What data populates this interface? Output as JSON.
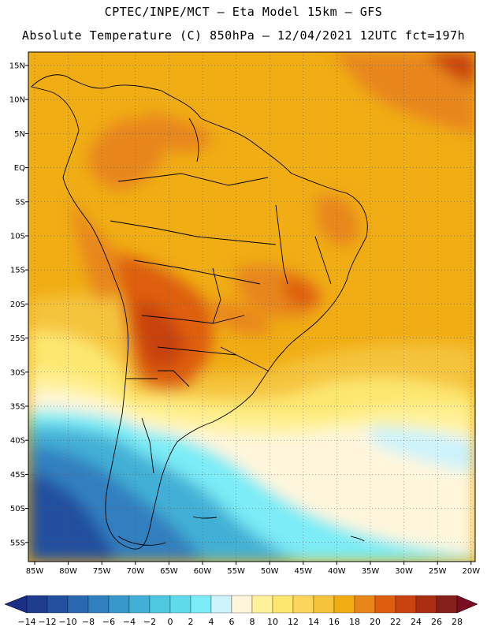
{
  "header": {
    "line1": "CPTEC/INPE/MCT —  Eta Model 15km — GFS",
    "line2": "Absolute Temperature (C) 850hPa — 12/04/2021 12UTC fct=197h"
  },
  "map": {
    "lat_labels": [
      "15N",
      "10N",
      "5N",
      "EQ",
      "5S",
      "10S",
      "15S",
      "20S",
      "25S",
      "30S",
      "35S",
      "40S",
      "45S",
      "50S",
      "55S"
    ],
    "lon_labels": [
      "85W",
      "80W",
      "75W",
      "70W",
      "65W",
      "60W",
      "55W",
      "50W",
      "45W",
      "40W",
      "35W",
      "30W",
      "25W",
      "20W"
    ]
  },
  "colorbar": {
    "labels": [
      "-14",
      "-12",
      "-10",
      "-8",
      "-6",
      "-4",
      "-2",
      "0",
      "2",
      "4",
      "6",
      "8",
      "10",
      "12",
      "14",
      "16",
      "18",
      "20",
      "22",
      "24",
      "26",
      "28"
    ],
    "colors": [
      "#1e3c8c",
      "#23509f",
      "#2a68b0",
      "#307fbf",
      "#3898cb",
      "#42b0d6",
      "#4ec7e0",
      "#5fdaea",
      "#7cecf6",
      "#cdf3fb",
      "#fff6dc",
      "#fff29a",
      "#fde76f",
      "#fbd65a",
      "#f5c43c",
      "#f0ad14",
      "#e8861a",
      "#de5e0f",
      "#c8430f",
      "#a92e12",
      "#86201a"
    ],
    "low_color": "#1c2f86",
    "high_color": "#7a0d23"
  }
}
